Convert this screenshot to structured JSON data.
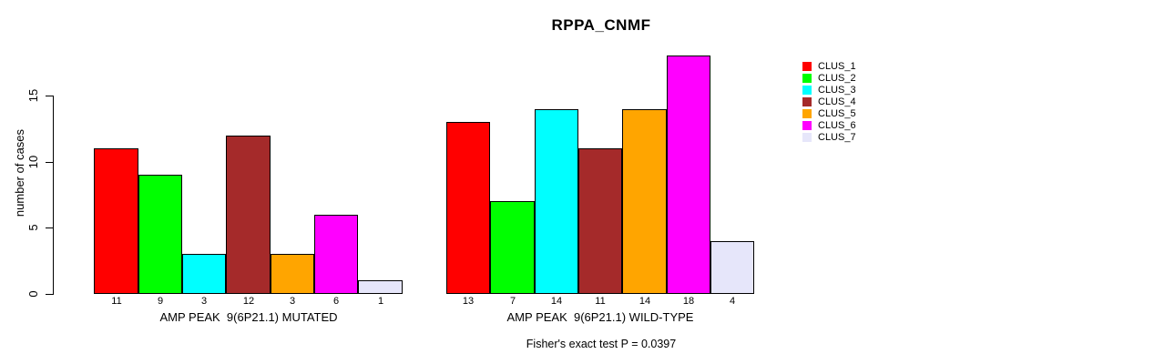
{
  "chart_data": {
    "type": "bar",
    "title": "RPPA_CNMF",
    "ylabel": "number of cases",
    "xlabel": "",
    "categories": [
      "AMP PEAK  9(6P21.1) MUTATED",
      "AMP PEAK  9(6P21.1) WILD-TYPE"
    ],
    "series": [
      {
        "name": "CLUS_1",
        "color": "#FF0000",
        "values": [
          11,
          13
        ]
      },
      {
        "name": "CLUS_2",
        "color": "#00FF00",
        "values": [
          9,
          7
        ]
      },
      {
        "name": "CLUS_3",
        "color": "#00FFFF",
        "values": [
          3,
          14
        ]
      },
      {
        "name": "CLUS_4",
        "color": "#A52A2A",
        "values": [
          12,
          11
        ]
      },
      {
        "name": "CLUS_5",
        "color": "#FFA500",
        "values": [
          3,
          14
        ]
      },
      {
        "name": "CLUS_6",
        "color": "#FF00FF",
        "values": [
          6,
          18
        ]
      },
      {
        "name": "CLUS_7",
        "color": "#E6E6FA",
        "values": [
          1,
          4
        ]
      }
    ],
    "yticks": [
      0,
      5,
      10,
      15
    ],
    "ylim": [
      0,
      18
    ],
    "grid": false,
    "legend_position": "right",
    "bar_value_labels": true,
    "footnote": "Fisher's exact test P = 0.0397"
  },
  "colors": {
    "background": "#FFFFFF",
    "axis": "#000000",
    "text": "#000000"
  }
}
